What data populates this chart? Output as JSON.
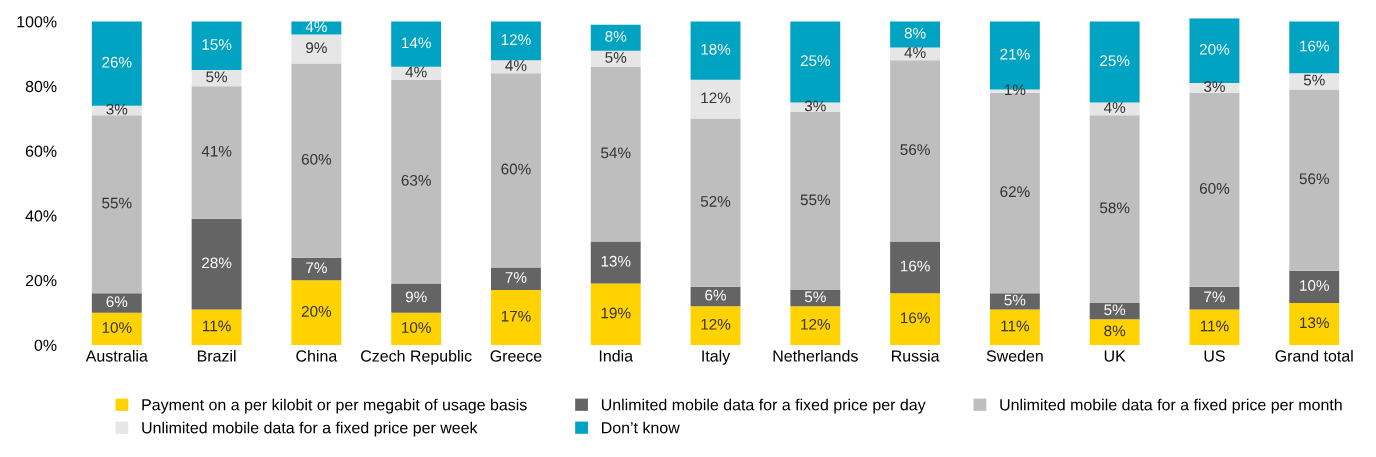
{
  "chart_data": {
    "type": "bar",
    "stacked": true,
    "categories": [
      "Australia",
      "Brazil",
      "China",
      "Czech Republic",
      "Greece",
      "India",
      "Italy",
      "Netherlands",
      "Russia",
      "Sweden",
      "UK",
      "US",
      "Grand total"
    ],
    "series": [
      {
        "name": "Payment on a per kilobit or per megabit of usage basis",
        "color": "#ffd200",
        "values": [
          10,
          11,
          20,
          10,
          17,
          19,
          12,
          12,
          16,
          11,
          8,
          11,
          13
        ],
        "value_labels": [
          "10%",
          "11%",
          "20%",
          "10%",
          "17%",
          "19%",
          "12%",
          "12%",
          "16%",
          "11%",
          "8%",
          "11%",
          "13%"
        ]
      },
      {
        "name": "Unlimited mobile data for a fixed price per day",
        "color": "#646464",
        "values": [
          6,
          28,
          7,
          9,
          7,
          13,
          6,
          5,
          16,
          5,
          5,
          7,
          10
        ],
        "value_labels": [
          "6%",
          "28%",
          "7%",
          "9%",
          "7%",
          "13%",
          "6%",
          "5%",
          "16%",
          "5%",
          "5%",
          "7%",
          "10%"
        ]
      },
      {
        "name": "Unlimited mobile data for a fixed price per month",
        "color": "#bebebe",
        "values": [
          55,
          41,
          60,
          63,
          60,
          54,
          52,
          55,
          56,
          62,
          58,
          60,
          56
        ],
        "value_labels": [
          "55%",
          "41%",
          "60%",
          "63%",
          "60%",
          "54%",
          "52%",
          "55%",
          "56%",
          "62%",
          "58%",
          "60%",
          "56%"
        ]
      },
      {
        "name": "Unlimited mobile data for a fixed price per week",
        "color": "#e6e6e6",
        "values": [
          3,
          5,
          9,
          4,
          4,
          5,
          12,
          3,
          4,
          1,
          4,
          3,
          5
        ],
        "value_labels": [
          "3%",
          "5%",
          "9%",
          "4%",
          "4%",
          "5%",
          "12%",
          "3%",
          "4%",
          "1%",
          "4%",
          "3%",
          "5%"
        ]
      },
      {
        "name": "Don’t know",
        "color": "#00a3c1",
        "values": [
          26,
          15,
          4,
          14,
          12,
          8,
          18,
          25,
          8,
          21,
          25,
          20,
          16
        ],
        "value_labels": [
          "26%",
          "15%",
          "4%",
          "14%",
          "12%",
          "8%",
          "18%",
          "25%",
          "8%",
          "21%",
          "25%",
          "20%",
          "16%"
        ]
      }
    ],
    "ylim": [
      0,
      101
    ],
    "yticks": [
      {
        "value": 0,
        "label": "0%"
      },
      {
        "value": 20,
        "label": "20%"
      },
      {
        "value": 40,
        "label": "40%"
      },
      {
        "value": 60,
        "label": "60%"
      },
      {
        "value": 80,
        "label": "80%"
      },
      {
        "value": 100,
        "label": "100%"
      }
    ],
    "grid": false,
    "legend": "bottom"
  }
}
